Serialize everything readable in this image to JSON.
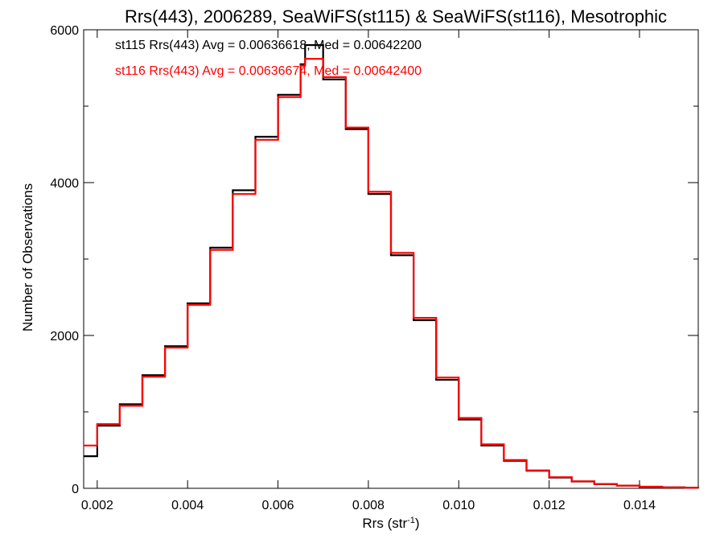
{
  "chart_data": {
    "type": "line",
    "title": "Rrs(443), 2006289, SeaWiFS(st115) & SeaWiFS(st116), Mesotrophic",
    "xlabel_main": "Rrs (str",
    "xlabel_sup": "-1",
    "xlabel_end": ")",
    "ylabel": "Number of Observations",
    "xlim": [
      0.0017,
      0.0153
    ],
    "ylim": [
      0,
      6000
    ],
    "x_ticks": [
      0.002,
      0.004,
      0.006,
      0.008,
      0.01,
      0.012,
      0.014
    ],
    "x_tick_labels": [
      "0.002",
      "0.004",
      "0.006",
      "0.008",
      "0.010",
      "0.012",
      "0.014"
    ],
    "y_ticks": [
      0,
      2000,
      4000,
      6000
    ],
    "y_tick_labels": [
      "0",
      "2000",
      "4000",
      "6000"
    ],
    "grid": false,
    "legend_position": "top-left",
    "series": [
      {
        "name": "st115",
        "color": "#000000",
        "annotation": "st115 Rrs(443) Avg = 0.00636618, Med = 0.00642200",
        "x": [
          0.0017,
          0.002,
          0.0025,
          0.003,
          0.0035,
          0.004,
          0.0045,
          0.005,
          0.0055,
          0.006,
          0.0065,
          0.0066,
          0.007,
          0.0075,
          0.008,
          0.0085,
          0.009,
          0.0095,
          0.01,
          0.0105,
          0.011,
          0.0115,
          0.012,
          0.0125,
          0.013,
          0.0135,
          0.014,
          0.0145,
          0.015,
          0.0153
        ],
        "y": [
          420,
          820,
          1100,
          1480,
          1860,
          2420,
          3150,
          3900,
          4600,
          5150,
          5550,
          5800,
          5350,
          4700,
          3850,
          3050,
          2200,
          1420,
          900,
          560,
          360,
          230,
          140,
          90,
          55,
          35,
          20,
          12,
          6,
          4
        ]
      },
      {
        "name": "st116",
        "color": "#ff0000",
        "annotation": "st116 Rrs(443) Avg = 0.00636674, Med = 0.00642400",
        "x": [
          0.0017,
          0.002,
          0.0025,
          0.003,
          0.0035,
          0.004,
          0.0045,
          0.005,
          0.0055,
          0.006,
          0.0065,
          0.0066,
          0.007,
          0.0075,
          0.008,
          0.0085,
          0.009,
          0.0095,
          0.01,
          0.0105,
          0.011,
          0.0115,
          0.012,
          0.0125,
          0.013,
          0.0135,
          0.014,
          0.0145,
          0.015,
          0.0153
        ],
        "y": [
          560,
          840,
          1080,
          1460,
          1840,
          2400,
          3120,
          3850,
          4560,
          5120,
          5530,
          5620,
          5380,
          4720,
          3880,
          3080,
          2230,
          1450,
          920,
          575,
          370,
          235,
          145,
          92,
          56,
          36,
          21,
          13,
          7,
          5
        ]
      }
    ]
  }
}
